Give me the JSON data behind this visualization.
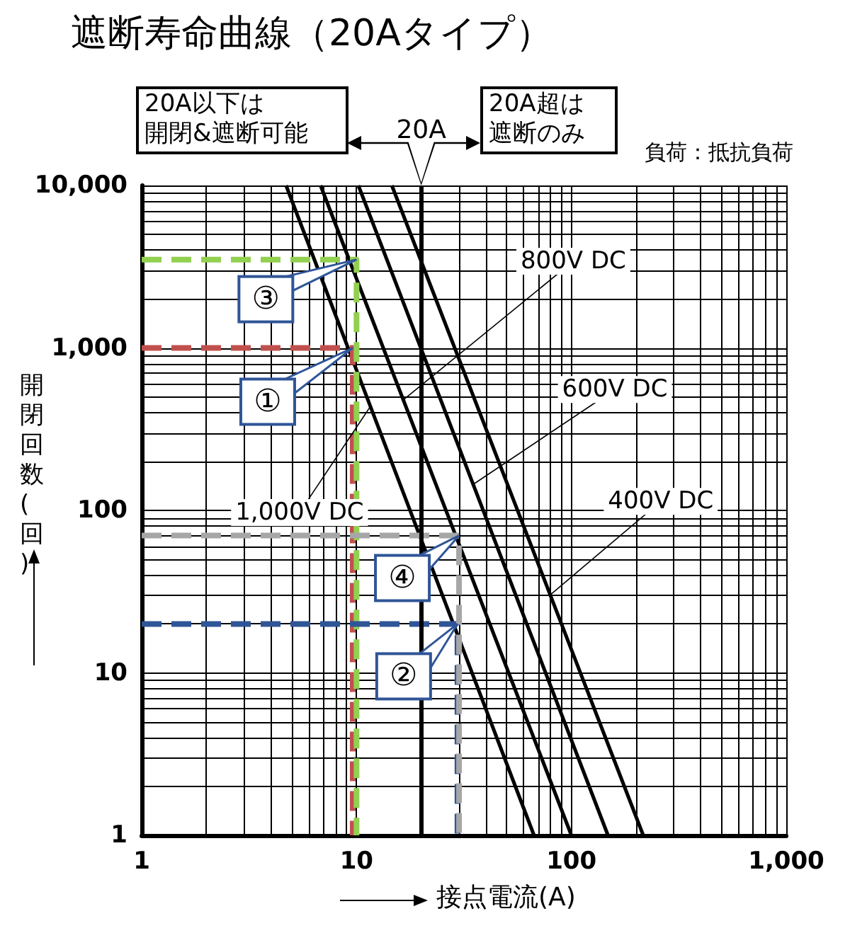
{
  "chart_data": {
    "type": "line",
    "title": "遮断寿命曲線（20Aタイプ）",
    "xlabel": "接点電流(A)",
    "ylabel": "開閉回数(回)",
    "annotations": [
      "20A以下は",
      "開閉&遮断可能",
      "20A超は",
      "遮断のみ",
      "負荷：抵抗負荷",
      {
        "text": "③",
        "x": 10,
        "y": 3500
      },
      {
        "text": "①",
        "x": 9.6,
        "y": 1000
      },
      {
        "text": "④",
        "x": 30,
        "y": 70
      },
      {
        "text": "②",
        "x": 29.5,
        "y": 20
      }
    ],
    "log": "xy",
    "grid": true,
    "marker": "none",
    "xlim": [
      1,
      1000
    ],
    "ylim": [
      1,
      10000
    ],
    "xticks": [
      1,
      {
        "value": 2,
        "label": null
      },
      {
        "value": 3,
        "label": null
      },
      {
        "value": 4,
        "label": null
      },
      {
        "value": 5,
        "label": null
      },
      {
        "value": 6,
        "label": null
      },
      {
        "value": 7,
        "label": null
      },
      {
        "value": 8,
        "label": null
      },
      {
        "value": 9,
        "label": null
      },
      10,
      {
        "value": 20,
        "label": null
      },
      {
        "value": 30,
        "label": null
      },
      {
        "value": 40,
        "label": null
      },
      {
        "value": 50,
        "label": null
      },
      {
        "value": 60,
        "label": null
      },
      {
        "value": 70,
        "label": null
      },
      {
        "value": 80,
        "label": null
      },
      {
        "value": 90,
        "label": null
      },
      100,
      {
        "value": 200,
        "label": null
      },
      {
        "value": 300,
        "label": null
      },
      {
        "value": 400,
        "label": null
      },
      {
        "value": 500,
        "label": null
      },
      {
        "value": 600,
        "label": null
      },
      {
        "value": 700,
        "label": null
      },
      {
        "value": 800,
        "label": null
      },
      {
        "value": 900,
        "label": null
      },
      {
        "value": 1000,
        "label": "1,000"
      }
    ],
    "yticks": [
      1,
      {
        "value": 2,
        "label": null
      },
      {
        "value": 3,
        "label": null
      },
      {
        "value": 4,
        "label": null
      },
      {
        "value": 5,
        "label": null
      },
      {
        "value": 6,
        "label": null
      },
      {
        "value": 7,
        "label": null
      },
      {
        "value": 8,
        "label": null
      },
      {
        "value": 9,
        "label": null
      },
      10,
      {
        "value": 20,
        "label": null
      },
      {
        "value": 30,
        "label": null
      },
      {
        "value": 40,
        "label": null
      },
      {
        "value": 50,
        "label": null
      },
      {
        "value": 60,
        "label": null
      },
      {
        "value": 70,
        "label": null
      },
      {
        "value": 80,
        "label": null
      },
      {
        "value": 90,
        "label": null
      },
      100,
      {
        "value": 200,
        "label": null
      },
      {
        "value": 300,
        "label": null
      },
      {
        "value": 400,
        "label": null
      },
      {
        "value": 500,
        "label": null
      },
      {
        "value": 600,
        "label": null
      },
      {
        "value": 700,
        "label": null
      },
      {
        "value": 800,
        "label": null
      },
      {
        "value": 900,
        "label": null
      },
      {
        "value": 1000,
        "label": "1,000"
      },
      {
        "value": 2000,
        "label": null
      },
      {
        "value": 3000,
        "label": null
      },
      {
        "value": 4000,
        "label": null
      },
      {
        "value": 5000,
        "label": null
      },
      {
        "value": 6000,
        "label": null
      },
      {
        "value": 7000,
        "label": null
      },
      {
        "value": 8000,
        "label": null
      },
      {
        "value": 9000,
        "label": null
      },
      {
        "value": 10000,
        "label": "10,000"
      }
    ],
    "ref_lines": [
      {
        "axis": "x",
        "value": 20,
        "label": "20A",
        "color": "#000000"
      }
    ],
    "series": [
      {
        "name": "1,000V DC",
        "color": "#000000",
        "x": [
          4.7,
          67
        ],
        "values": [
          10000,
          1
        ],
        "line_style": "solid"
      },
      {
        "name": "800V DC",
        "color": "#000000",
        "x": [
          6.8,
          100
        ],
        "values": [
          10000,
          1
        ],
        "line_style": "solid"
      },
      {
        "name": "600V DC",
        "color": "#000000",
        "x": [
          10.2,
          148
        ],
        "values": [
          10000,
          1
        ],
        "line_style": "solid"
      },
      {
        "name": "400V DC",
        "color": "#000000",
        "x": [
          14.6,
          216
        ],
        "values": [
          10000,
          1
        ],
        "line_style": "solid"
      },
      {
        "color": "#c0504d",
        "x": [
          1,
          9.6,
          9.6
        ],
        "values": [
          1000,
          1000,
          1
        ],
        "line_style": "dashed"
      },
      {
        "color": "#92d050",
        "x": [
          1,
          10,
          10
        ],
        "values": [
          3500,
          3500,
          1
        ],
        "line_style": "dashed"
      },
      {
        "color": "#2f5597",
        "x": [
          1,
          29.5,
          29.5
        ],
        "values": [
          20,
          20,
          1
        ],
        "line_style": "dashed"
      },
      {
        "color": "#a6a6a6",
        "x": [
          1,
          30,
          30
        ],
        "values": [
          70,
          70,
          1
        ],
        "line_style": "dashed"
      }
    ]
  }
}
